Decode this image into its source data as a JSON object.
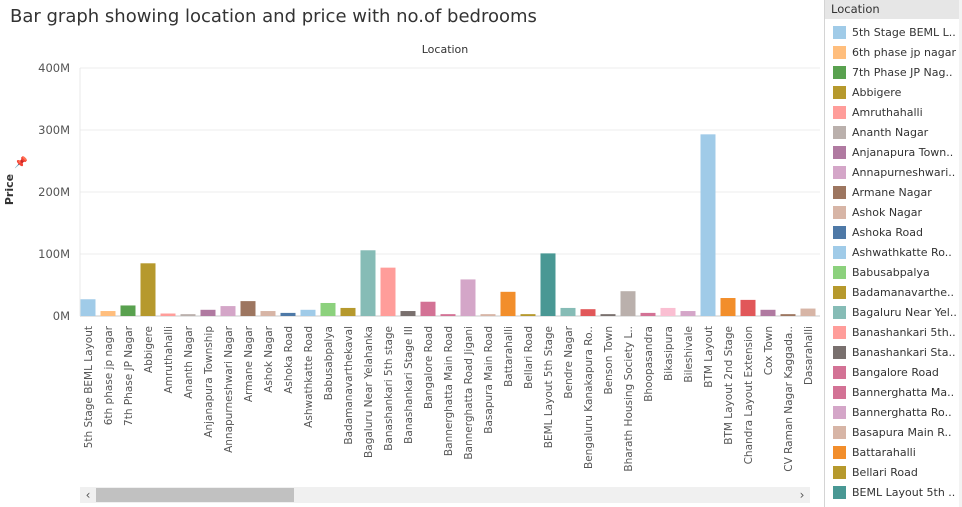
{
  "title": "Bar graph showing location and price with no.of bedrooms",
  "legend": {
    "title": "Location"
  },
  "scrollbar": {
    "left_icon": "‹",
    "right_icon": "›"
  },
  "chart_data": {
    "type": "bar",
    "title": "Bar graph showing location and price with no.of bedrooms",
    "top_axis_title": "Location",
    "ylabel": "Price",
    "ylim": [
      0,
      400000000
    ],
    "yticks": [
      0,
      100000000,
      200000000,
      300000000,
      400000000
    ],
    "ytick_labels": [
      "0M",
      "100M",
      "200M",
      "300M",
      "400M"
    ],
    "grid": true,
    "legend_position": "right",
    "categories": [
      "5th Stage BEML Layout",
      "6th phase jp nagar",
      "7th Phase JP Nagar",
      "Abbigere",
      "Amruthahalli",
      "Ananth Nagar",
      "Anjanapura Township",
      "Annapurneshwari Nagar",
      "Armane Nagar",
      "Ashok Nagar",
      "Ashoka Road",
      "Ashwathkatte Road",
      "Babusabpalya",
      "Badamanavarthekaval",
      "Bagaluru Near Yelahanka",
      "Banashankari 5th stage",
      "Banashankari Stage III",
      "Bangalore Road",
      "Bannerghatta Main Road",
      "Bannerghatta Road Jigani",
      "Basapura Main Road",
      "Battarahalli",
      "Bellari Road",
      "BEML Layout 5th Stage",
      "Bendre Nagar",
      "Bengaluru Kanakapura Ro..",
      "Benson Town",
      "Bharath Housing Society L..",
      "Bhoopasandra",
      "Bikasipura",
      "Bileshivale",
      "BTM Layout",
      "BTM Layout 2nd Stage",
      "Chandra Layout Extension",
      "Cox Town",
      "CV Raman Nagar Kaggada..",
      "Dasarahalli"
    ],
    "values": [
      27000000,
      8000000,
      17000000,
      85000000,
      4000000,
      3000000,
      10000000,
      16000000,
      24000000,
      8000000,
      5000000,
      10000000,
      21000000,
      13000000,
      106000000,
      78000000,
      8000000,
      23000000,
      3000000,
      59000000,
      3000000,
      39000000,
      3000000,
      101000000,
      13000000,
      11000000,
      3000000,
      40000000,
      5000000,
      13000000,
      8000000,
      293000000,
      29000000,
      26000000,
      10000000,
      3000000,
      12000000
    ],
    "colors": [
      "#a0cbe8",
      "#ffbe7d",
      "#59a14f",
      "#b6992d",
      "#ff9d9a",
      "#bab0ac",
      "#b07aa1",
      "#d4a6c8",
      "#9d7660",
      "#d7b5a6",
      "#4e79a7",
      "#a0cbe8",
      "#8cd17d",
      "#b6992d",
      "#86bcb6",
      "#ff9d9a",
      "#79706e",
      "#d37295",
      "#d37295",
      "#d4a6c8",
      "#d7b5a6",
      "#f28e2b",
      "#b6992d",
      "#499894",
      "#86bcb6",
      "#e15759",
      "#79706e",
      "#bab0ac",
      "#d37295",
      "#fabfd2",
      "#d4a6c8",
      "#a0cbe8",
      "#f28e2b",
      "#e15759",
      "#b07aa1",
      "#9d7660",
      "#d7b5a6"
    ],
    "legend_entries": [
      "5th Stage BEML L..",
      "6th phase jp nagar",
      "7th Phase JP Nag..",
      "Abbigere",
      "Amruthahalli",
      "Ananth Nagar",
      "Anjanapura Town..",
      "Annapurneshwari..",
      "Armane Nagar",
      "Ashok Nagar",
      "Ashoka Road",
      "Ashwathkatte Ro..",
      "Babusabpalya",
      "Badamanavarthe..",
      "Bagaluru Near Yel..",
      "Banashankari 5th..",
      "Banashankari Sta..",
      "Bangalore Road",
      "Bannerghatta Ma..",
      "Bannerghatta Ro..",
      "Basapura Main R..",
      "Battarahalli",
      "Bellari Road",
      "BEML Layout 5th .."
    ],
    "legend_colors": [
      "#a0cbe8",
      "#ffbe7d",
      "#59a14f",
      "#b6992d",
      "#ff9d9a",
      "#bab0ac",
      "#b07aa1",
      "#d4a6c8",
      "#9d7660",
      "#d7b5a6",
      "#4e79a7",
      "#a0cbe8",
      "#8cd17d",
      "#b6992d",
      "#86bcb6",
      "#ff9d9a",
      "#79706e",
      "#d37295",
      "#d37295",
      "#d4a6c8",
      "#d7b5a6",
      "#f28e2b",
      "#b6992d",
      "#499894"
    ]
  }
}
